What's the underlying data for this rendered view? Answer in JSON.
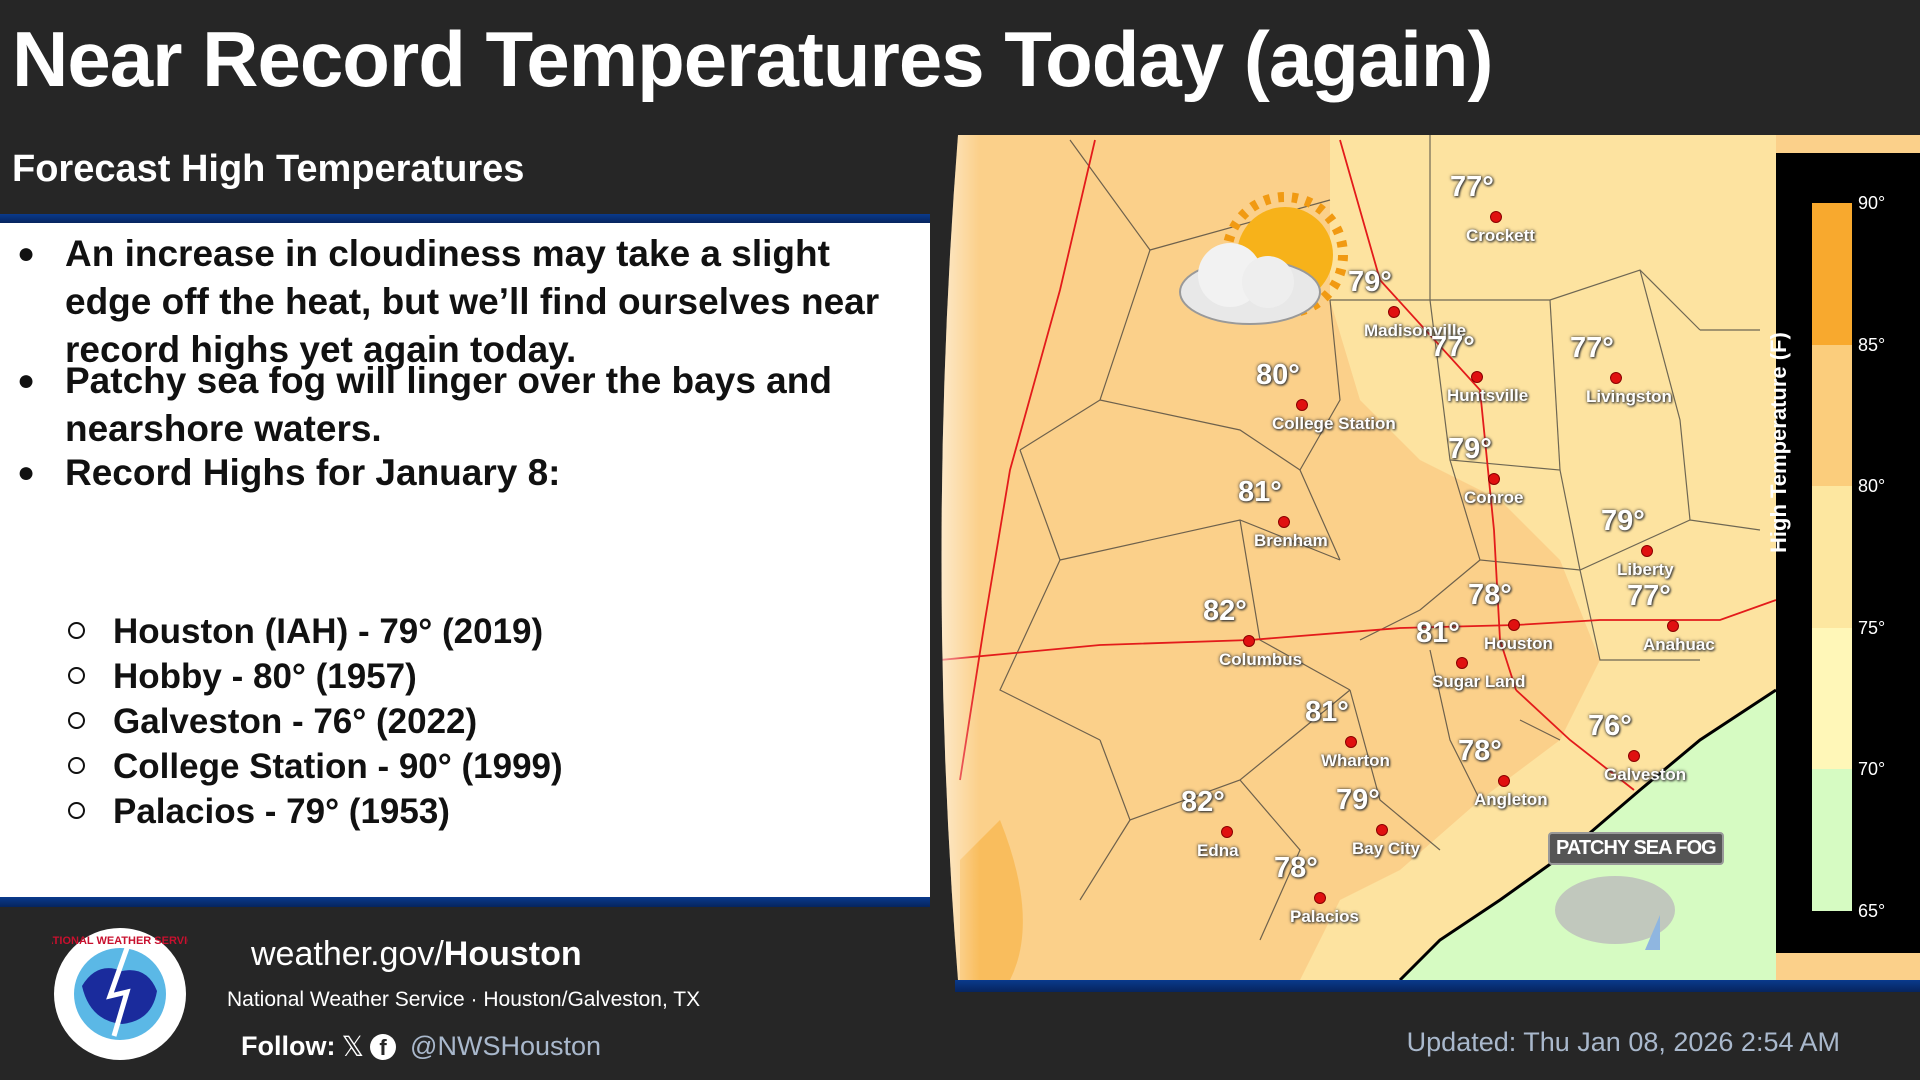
{
  "header": {
    "title": "Near Record Temperatures Today (again)",
    "subtitle": "Forecast High Temperatures"
  },
  "bullets": [
    {
      "text": "An increase in cloudiness may take a slight edge off the heat, but we’ll find ourselves near record highs yet again today."
    },
    {
      "text": "Patchy sea fog will linger over the bays and nearshore waters."
    },
    {
      "text": "Record Highs for January 8:"
    }
  ],
  "records": [
    "Houston (IAH) - 79° (2019)",
    "Hobby - 80° (1957)",
    "Galveston - 76° (2022)",
    "College Station - 90° (1999)",
    "Palacios - 79° (1953)"
  ],
  "map": {
    "cities": [
      {
        "name": "Crockett",
        "temp": "77°"
      },
      {
        "name": "Madisonville",
        "temp": "79°"
      },
      {
        "name": "Huntsville",
        "temp": "77°"
      },
      {
        "name": "Livingston",
        "temp": "77°"
      },
      {
        "name": "College Station",
        "temp": "80°"
      },
      {
        "name": "Conroe",
        "temp": "79°"
      },
      {
        "name": "Brenham",
        "temp": "81°"
      },
      {
        "name": "Liberty",
        "temp": "79°"
      },
      {
        "name": "Houston",
        "temp": "78°"
      },
      {
        "name": "Anahuac",
        "temp": "77°"
      },
      {
        "name": "Columbus",
        "temp": "82°"
      },
      {
        "name": "Sugar Land",
        "temp": "81°"
      },
      {
        "name": "Galveston",
        "temp": "76°"
      },
      {
        "name": "Wharton",
        "temp": "81°"
      },
      {
        "name": "Angleton",
        "temp": "78°"
      },
      {
        "name": "Edna",
        "temp": "82°"
      },
      {
        "name": "Bay City",
        "temp": "79°"
      },
      {
        "name": "Palacios",
        "temp": "78°"
      }
    ],
    "fog_label": "PATCHY SEA FOG",
    "weather_icon": "partly-cloudy-icon",
    "legend": {
      "title": "High Temperature (F)",
      "ticks": [
        "90°",
        "85°",
        "80°",
        "75°",
        "70°",
        "65°"
      ],
      "colors": [
        "#f8a92e",
        "#fbcd7c",
        "#fde7a0",
        "#fff7b8",
        "#d6fbc2"
      ]
    }
  },
  "footer": {
    "url_prefix": "weather.gov/",
    "url_bold": "Houston",
    "org": "National Weather Service · Houston/Galveston, TX",
    "follow_label": "Follow:",
    "handle": "@NWSHouston",
    "updated": "Updated: Thu Jan 08, 2026 2:54 AM",
    "logo_text": "NATIONAL WEATHER SERVICE"
  }
}
